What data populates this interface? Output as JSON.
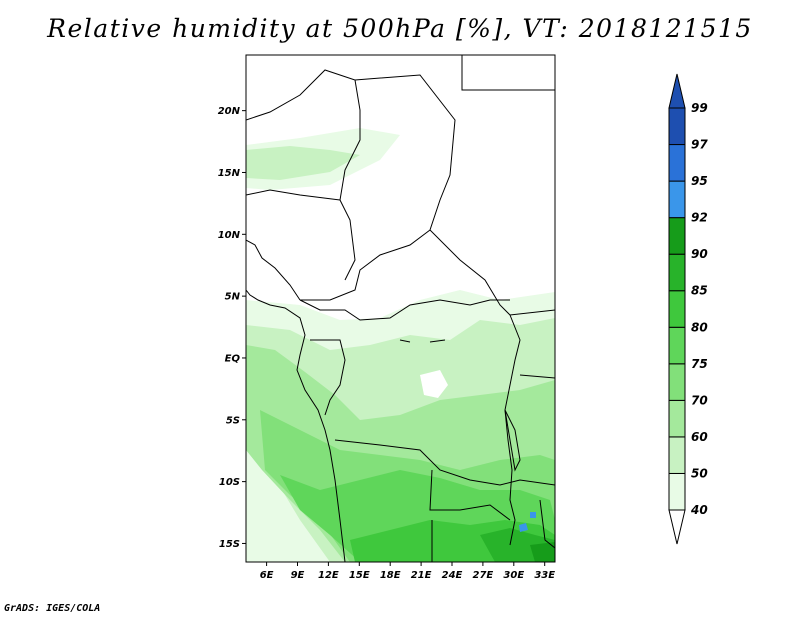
{
  "title": "Relative humidity at 500hPa [%], VT: 2018121515",
  "credit": "GrADS: IGES/COLA",
  "map": {
    "lon_range": [
      4,
      34
    ],
    "lat_range": [
      -16.5,
      24.5
    ],
    "lat_ticks": [
      {
        "value": 20,
        "label": "20N"
      },
      {
        "value": 15,
        "label": "15N"
      },
      {
        "value": 10,
        "label": "10N"
      },
      {
        "value": 5,
        "label": "5N"
      },
      {
        "value": 0,
        "label": "EQ"
      },
      {
        "value": -5,
        "label": "5S"
      },
      {
        "value": -10,
        "label": "10S"
      },
      {
        "value": -15,
        "label": "15S"
      }
    ],
    "lon_ticks": [
      {
        "value": 6,
        "label": "6E"
      },
      {
        "value": 9,
        "label": "9E"
      },
      {
        "value": 12,
        "label": "12E"
      },
      {
        "value": 15,
        "label": "15E"
      },
      {
        "value": 18,
        "label": "18E"
      },
      {
        "value": 21,
        "label": "21E"
      },
      {
        "value": 24,
        "label": "24E"
      },
      {
        "value": 27,
        "label": "27E"
      },
      {
        "value": 30,
        "label": "30E"
      },
      {
        "value": 33,
        "label": "33E"
      }
    ]
  },
  "colorbar": {
    "levels": [
      "40",
      "50",
      "60",
      "70",
      "75",
      "80",
      "85",
      "90",
      "92",
      "95",
      "97",
      "99"
    ],
    "colors": [
      "#e8fbe6",
      "#c8f2c2",
      "#a4e99c",
      "#82e07a",
      "#5fd65a",
      "#3fc83d",
      "#28b32a",
      "#169c1a",
      "#3a96ea",
      "#2a72d8",
      "#1e4fb0"
    ],
    "end_colors": {
      "low": "#ffffff",
      "high": "#1e4fb0"
    }
  }
}
